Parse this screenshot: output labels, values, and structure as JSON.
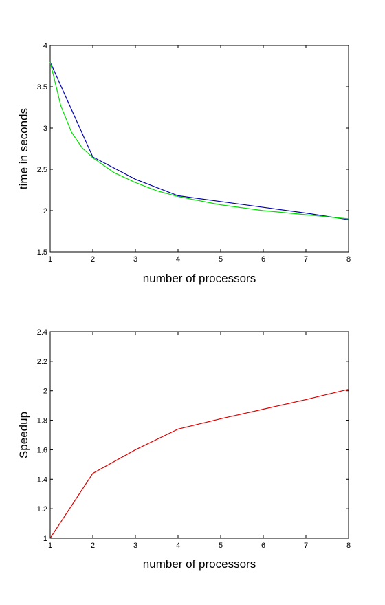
{
  "chart_data": [
    {
      "type": "line",
      "xlabel": "number of processors",
      "ylabel": "time in seconds",
      "xlim": [
        1,
        8
      ],
      "ylim": [
        1.5,
        4
      ],
      "xticks": [
        "1",
        "2",
        "3",
        "4",
        "5",
        "6",
        "7",
        "8"
      ],
      "yticks": [
        "1.5",
        "2",
        "2.5",
        "3",
        "3.5",
        "4"
      ],
      "grid": false,
      "series": [
        {
          "color": "#0000aa",
          "x": [
            1,
            2,
            3,
            4,
            5,
            6,
            7,
            8
          ],
          "y": [
            3.8,
            2.65,
            2.38,
            2.18,
            2.11,
            2.04,
            1.97,
            1.89
          ]
        },
        {
          "color": "#00dd00",
          "x": [
            1,
            1.25,
            1.5,
            1.75,
            2,
            2.5,
            3,
            3.5,
            4,
            5,
            6,
            7,
            8
          ],
          "y": [
            3.8,
            3.27,
            2.95,
            2.76,
            2.64,
            2.46,
            2.34,
            2.24,
            2.17,
            2.07,
            2.0,
            1.95,
            1.9
          ]
        }
      ]
    },
    {
      "type": "line",
      "xlabel": "number of processors",
      "ylabel": "Speedup",
      "xlim": [
        1,
        8
      ],
      "ylim": [
        1,
        2.4
      ],
      "xticks": [
        "1",
        "2",
        "3",
        "4",
        "5",
        "6",
        "7",
        "8"
      ],
      "yticks": [
        "1",
        "1.2",
        "1.4",
        "1.6",
        "1.8",
        "2",
        "2.2",
        "2.4"
      ],
      "grid": false,
      "series": [
        {
          "color": "#dd0000",
          "x": [
            1,
            2,
            3,
            4,
            5,
            6,
            7,
            8
          ],
          "y": [
            1.0,
            1.44,
            1.6,
            1.74,
            1.81,
            1.875,
            1.94,
            2.01
          ]
        }
      ]
    }
  ]
}
